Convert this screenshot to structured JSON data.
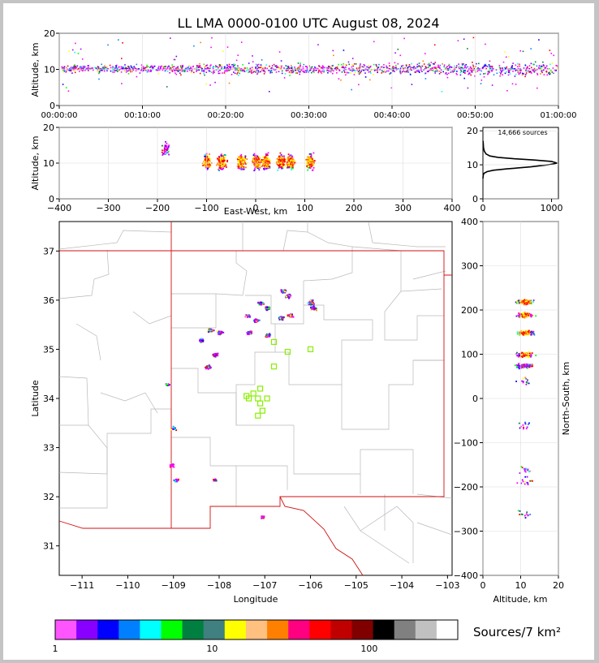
{
  "chart_data": {
    "type": "scatter",
    "title": "LL LMA 0000-0100 UTC August 08, 2024",
    "panels": {
      "time_height": {
        "ylabel": "Altitude, km",
        "ylim": [
          0,
          20
        ],
        "yticks": [
          "0",
          "10",
          "20"
        ],
        "xticks": [
          "00:00:00",
          "00:10:00",
          "00:20:00",
          "00:30:00",
          "00:40:00",
          "00:50:00",
          "01:00:00"
        ],
        "band_altitude_km": [
          8,
          13.5
        ]
      },
      "ew_height": {
        "xlabel": "East-West, km",
        "ylabel": "Altitude, km",
        "xlim": [
          -400,
          400
        ],
        "xticks": [
          "−400",
          "−300",
          "−200",
          "−100",
          "0",
          "100",
          "200",
          "300",
          "400"
        ],
        "ylim": [
          0,
          20
        ],
        "yticks": [
          "0",
          "10",
          "20"
        ],
        "clusters_x_km": [
          -185,
          -100,
          -70,
          -30,
          0,
          20,
          50,
          70,
          110
        ]
      },
      "histogram": {
        "label": "14,666 sources",
        "xlim": [
          0,
          1100
        ],
        "xticks": [
          "0",
          "1000"
        ],
        "ylim": [
          0,
          21
        ],
        "yticks": [
          "0",
          "10",
          "20"
        ],
        "profile": [
          [
            0,
            6
          ],
          [
            5,
            7
          ],
          [
            15,
            7.5
          ],
          [
            60,
            8
          ],
          [
            150,
            8.4
          ],
          [
            350,
            8.8
          ],
          [
            700,
            9.4
          ],
          [
            950,
            10
          ],
          [
            1080,
            10.5
          ],
          [
            1000,
            11
          ],
          [
            750,
            11.4
          ],
          [
            450,
            11.8
          ],
          [
            220,
            12.2
          ],
          [
            100,
            12.6
          ],
          [
            45,
            13.2
          ],
          [
            20,
            14
          ],
          [
            8,
            15
          ],
          [
            2,
            17
          ]
        ]
      },
      "map": {
        "xlabel": "Longitude",
        "ylabel": "Latitude",
        "xlim": [
          -111.5,
          -102.9
        ],
        "xticks": [
          "−111",
          "−110",
          "−109",
          "−108",
          "−107",
          "−106",
          "−105",
          "−104",
          "−103"
        ],
        "ylim": [
          30.4,
          37.6
        ],
        "yticks": [
          "31",
          "32",
          "33",
          "34",
          "35",
          "36",
          "37"
        ],
        "source_clusters": [
          [
            -108.2,
            35.4
          ],
          [
            -108.4,
            35.2
          ],
          [
            -108.1,
            34.9
          ],
          [
            -108.25,
            34.65
          ],
          [
            -108.0,
            35.35
          ],
          [
            -107.35,
            35.35
          ],
          [
            -106.95,
            35.3
          ],
          [
            -107.2,
            35.6
          ],
          [
            -107.1,
            35.95
          ],
          [
            -106.95,
            35.85
          ],
          [
            -106.65,
            35.65
          ],
          [
            -106.45,
            35.7
          ],
          [
            -106.5,
            36.1
          ],
          [
            -106.6,
            36.2
          ],
          [
            -105.95,
            35.85
          ],
          [
            -106.0,
            35.95
          ],
          [
            -109.15,
            34.3
          ],
          [
            -109.0,
            33.4
          ],
          [
            -109.05,
            32.65
          ],
          [
            -108.95,
            32.35
          ],
          [
            -108.1,
            32.35
          ],
          [
            -107.05,
            31.6
          ],
          [
            -107.4,
            35.7
          ],
          [
            -106.0,
            36.0
          ]
        ],
        "stations": [
          [
            -107.1,
            34.2
          ],
          [
            -107.25,
            34.1
          ],
          [
            -107.35,
            34.0
          ],
          [
            -107.15,
            34.0
          ],
          [
            -106.95,
            34.0
          ],
          [
            -107.1,
            33.9
          ],
          [
            -107.05,
            33.75
          ],
          [
            -107.15,
            33.65
          ],
          [
            -107.4,
            34.05
          ],
          [
            -106.8,
            34.65
          ],
          [
            -106.8,
            35.15
          ],
          [
            -106.5,
            34.95
          ],
          [
            -106.0,
            35.0
          ]
        ]
      },
      "ns_height": {
        "xlabel": "Altitude, km",
        "ylabel": "North-South, km",
        "xlim": [
          0,
          20
        ],
        "xticks": [
          "0",
          "10",
          "20"
        ],
        "ylim": [
          -400,
          400
        ],
        "yticks": [
          "−400",
          "−300",
          "−200",
          "−100",
          "0",
          "100",
          "200",
          "300",
          "400"
        ],
        "clusters_y_km": [
          220,
          190,
          150,
          100,
          75,
          40,
          -60,
          -160,
          -185,
          -260
        ]
      }
    },
    "colorbar": {
      "label": "Sources/7 km²",
      "ticks": [
        "1",
        "10",
        "100"
      ],
      "colors": [
        "#ff55ff",
        "#8800ff",
        "#0000ff",
        "#0080ff",
        "#00ffff",
        "#00ff00",
        "#008040",
        "#408080",
        "#ffff00",
        "#ffc080",
        "#ff8000",
        "#ff0080",
        "#ff0000",
        "#c00000",
        "#800000",
        "#000000",
        "#808080",
        "#c0c0c0",
        "#ffffff"
      ]
    },
    "dot_colors": [
      "#ff00ff",
      "#aa00ff",
      "#6600ff",
      "#0000ff",
      "#0088ff",
      "#00ffff",
      "#00ff00",
      "#008040",
      "#ffff00",
      "#ff8000",
      "#ff0000"
    ],
    "station_color": "#88ee00"
  }
}
